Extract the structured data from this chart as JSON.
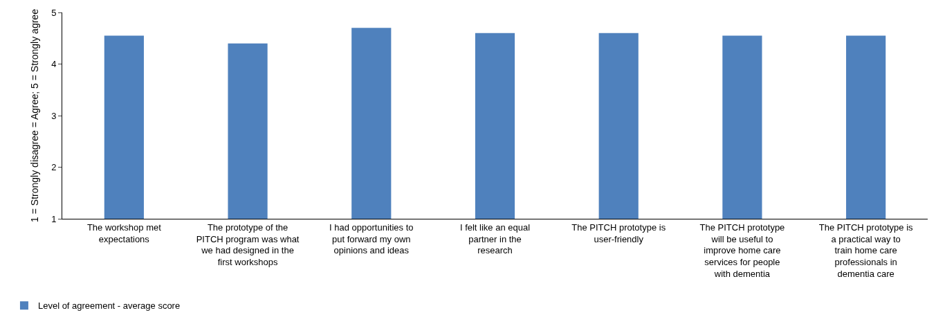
{
  "chart_data": {
    "type": "bar",
    "ylabel": "1 = Strongly disagree = Agree; 5 = Strongly agree",
    "categories": [
      "The workshop met expectations",
      "The prototype of the PITCH program was what we had designed in the first workshops",
      "I had opportunities to put forward my own opinions and ideas",
      "I felt like an equal partner in the research",
      "The PITCH prototype is user-friendly",
      "The PITCH prototype will be useful to improve home care services for people with dementia",
      "The PITCH prototype is a practical way to train home care professionals in dementia care"
    ],
    "series": [
      {
        "name": "Level of agreement - average score",
        "color": "#4f81bd",
        "values": [
          4.55,
          4.4,
          4.7,
          4.6,
          4.6,
          4.55,
          4.55
        ]
      }
    ],
    "ylim": [
      1,
      5
    ],
    "yticks": [
      1,
      2,
      3,
      4,
      5
    ],
    "grid": false,
    "legend": "bottom left"
  }
}
